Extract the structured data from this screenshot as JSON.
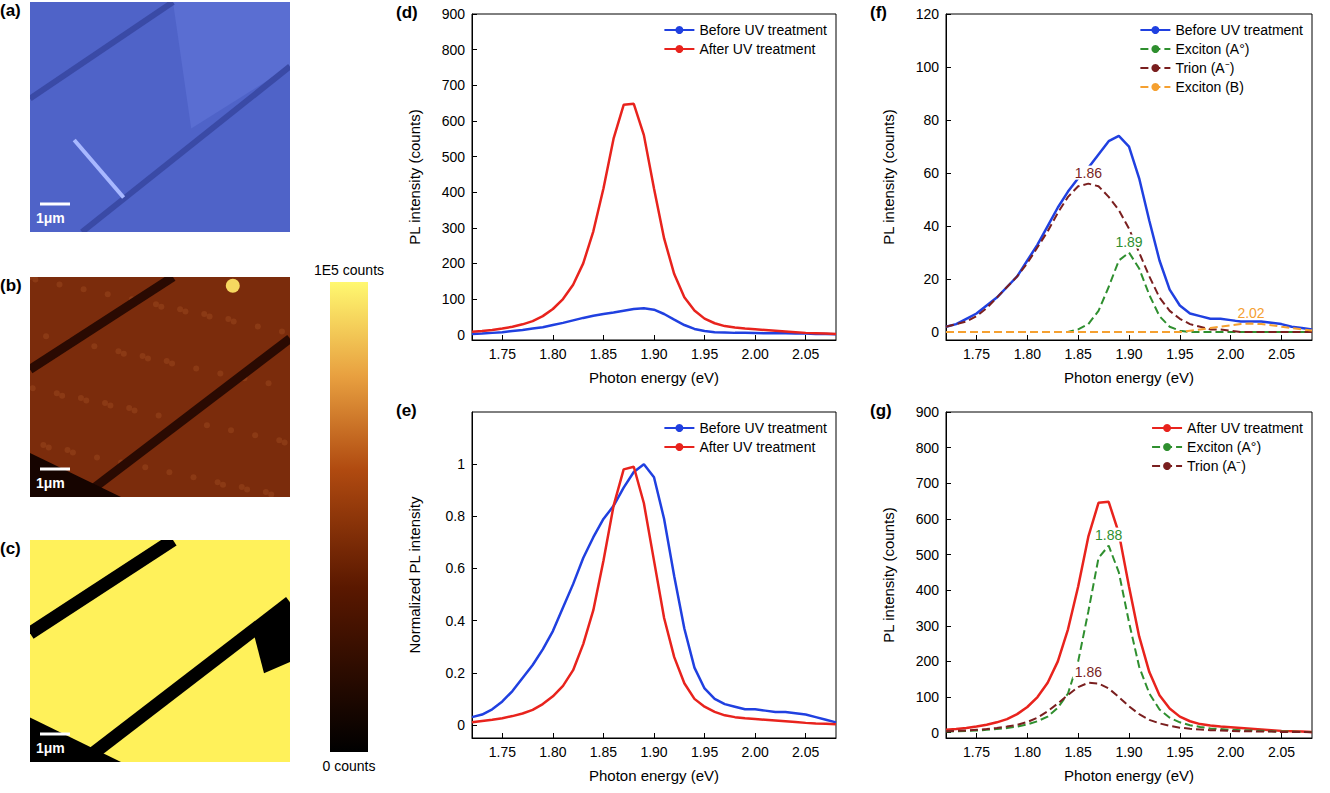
{
  "images": [
    {
      "panel": "(a)",
      "scale_bar": "1μm"
    },
    {
      "panel": "(b)",
      "scale_bar": "1μm"
    },
    {
      "panel": "(c)",
      "scale_bar": "1μm"
    }
  ],
  "colorbar": {
    "range": [
      0,
      100000
    ],
    "ticks": [
      {
        "value": 0,
        "label": "0 counts"
      },
      {
        "value": 100000,
        "label": "1E5 counts"
      }
    ]
  },
  "chart_data": [
    {
      "panel": "(d)",
      "type": "line",
      "xlabel": "Photon energy (eV)",
      "ylabel": "PL intensity (counts)",
      "xlim": [
        1.72,
        2.08
      ],
      "ylim": [
        -15,
        900
      ],
      "xticks": [
        1.75,
        {
          "value": 1.8,
          "label": "1.80"
        },
        1.85,
        {
          "value": 1.9,
          "label": "1.90"
        },
        1.95,
        {
          "value": 2,
          "label": "2.00"
        },
        2.05
      ],
      "yticks": [
        0,
        100,
        200,
        300,
        400,
        500,
        600,
        700,
        800,
        900
      ],
      "grid": false,
      "legend": "top-right",
      "x": [
        1.72,
        1.73,
        1.74,
        1.75,
        1.76,
        1.77,
        1.78,
        1.79,
        1.8,
        1.81,
        1.82,
        1.83,
        1.84,
        1.85,
        1.86,
        1.87,
        1.88,
        1.89,
        1.9,
        1.91,
        1.92,
        1.93,
        1.94,
        1.95,
        1.96,
        1.97,
        1.98,
        1.99,
        2,
        2.01,
        2.02,
        2.03,
        2.04,
        2.05,
        2.06,
        2.07,
        2.08
      ],
      "series": [
        {
          "name": "Before UV treatment",
          "color": "#2040e0",
          "values": [
            2,
            3,
            5,
            7,
            10,
            13,
            17,
            21,
            27,
            33,
            40,
            47,
            53,
            58,
            62,
            67,
            72,
            74,
            70,
            58,
            42,
            27,
            16,
            10,
            7,
            6,
            5,
            5,
            4.5,
            4,
            4,
            4,
            3.5,
            3,
            2,
            1.5,
            1
          ]
        },
        {
          "name": "After UV treatment",
          "color": "#e8231d",
          "values": [
            8,
            10,
            13,
            17,
            22,
            29,
            38,
            52,
            72,
            100,
            140,
            200,
            290,
            410,
            550,
            645,
            648,
            560,
            410,
            270,
            170,
            105,
            68,
            45,
            32,
            24,
            20,
            17,
            15,
            13,
            11,
            9,
            7,
            5,
            4,
            3,
            2
          ]
        }
      ]
    },
    {
      "panel": "(e)",
      "type": "line",
      "xlabel": "Photon energy (eV)",
      "ylabel": "Normalized PL intensity",
      "xlim": [
        1.72,
        2.08
      ],
      "ylim": [
        -0.05,
        1.2
      ],
      "xticks": [
        1.75,
        {
          "value": 1.8,
          "label": "1.80"
        },
        1.85,
        {
          "value": 1.9,
          "label": "1.90"
        },
        1.95,
        {
          "value": 2,
          "label": "2.00"
        },
        2.05
      ],
      "yticks": [
        0,
        0.2,
        0.4,
        0.6,
        0.8,
        1
      ],
      "grid": false,
      "legend": "top-right",
      "x": [
        1.72,
        1.73,
        1.74,
        1.75,
        1.76,
        1.77,
        1.78,
        1.79,
        1.8,
        1.81,
        1.82,
        1.83,
        1.84,
        1.85,
        1.86,
        1.87,
        1.88,
        1.89,
        1.9,
        1.91,
        1.92,
        1.93,
        1.94,
        1.95,
        1.96,
        1.97,
        1.98,
        1.99,
        2,
        2.01,
        2.02,
        2.03,
        2.04,
        2.05,
        2.06,
        2.07,
        2.08
      ],
      "series": [
        {
          "name": "Before UV treatment",
          "color": "#2040e0",
          "values": [
            0.03,
            0.04,
            0.06,
            0.09,
            0.13,
            0.18,
            0.23,
            0.29,
            0.36,
            0.45,
            0.54,
            0.64,
            0.72,
            0.79,
            0.84,
            0.91,
            0.97,
            1.0,
            0.95,
            0.79,
            0.57,
            0.37,
            0.22,
            0.14,
            0.1,
            0.08,
            0.07,
            0.06,
            0.06,
            0.055,
            0.05,
            0.05,
            0.045,
            0.04,
            0.03,
            0.02,
            0.01
          ]
        },
        {
          "name": "After UV treatment",
          "color": "#e8231d",
          "values": [
            0.01,
            0.015,
            0.02,
            0.026,
            0.034,
            0.044,
            0.058,
            0.08,
            0.11,
            0.15,
            0.21,
            0.31,
            0.44,
            0.63,
            0.84,
            0.98,
            0.99,
            0.85,
            0.63,
            0.41,
            0.26,
            0.16,
            0.1,
            0.07,
            0.05,
            0.037,
            0.03,
            0.026,
            0.023,
            0.02,
            0.017,
            0.014,
            0.011,
            0.008,
            0.006,
            0.005,
            0.003
          ]
        }
      ]
    },
    {
      "panel": "(f)",
      "type": "line",
      "xlabel": "Photon energy (eV)",
      "ylabel": "PL intensity (counts)",
      "xlim": [
        1.72,
        2.08
      ],
      "ylim": [
        -3,
        120
      ],
      "xticks": [
        1.75,
        {
          "value": 1.8,
          "label": "1.80"
        },
        1.85,
        {
          "value": 1.9,
          "label": "1.90"
        },
        1.95,
        {
          "value": 2,
          "label": "2.00"
        },
        2.05
      ],
      "yticks": [
        0,
        20,
        40,
        60,
        80,
        100,
        120
      ],
      "grid": false,
      "legend": "top-right",
      "x": [
        1.72,
        1.73,
        1.74,
        1.75,
        1.76,
        1.77,
        1.78,
        1.79,
        1.8,
        1.81,
        1.82,
        1.83,
        1.84,
        1.85,
        1.86,
        1.87,
        1.88,
        1.89,
        1.9,
        1.91,
        1.92,
        1.93,
        1.94,
        1.95,
        1.96,
        1.97,
        1.98,
        1.99,
        2,
        2.01,
        2.02,
        2.03,
        2.04,
        2.05,
        2.06,
        2.07,
        2.08
      ],
      "series": [
        {
          "name": "Before UV treatment",
          "color": "#2040e0",
          "values": [
            2,
            3,
            5,
            7,
            10,
            13,
            17,
            21,
            27,
            33,
            40,
            47,
            53,
            58,
            62,
            67,
            72,
            74,
            70,
            58,
            42,
            27,
            16,
            10,
            7,
            6,
            5,
            5,
            4.5,
            4,
            4,
            4,
            3.5,
            3,
            2,
            1.5,
            1
          ]
        },
        {
          "name": "Exciton (A°)",
          "color": "#2f8f2f",
          "line_style": "dashed",
          "annotation": "1.89",
          "values": [
            0,
            0,
            0,
            0,
            0,
            0,
            0,
            0,
            0,
            0,
            0,
            0,
            0,
            1,
            3,
            8,
            17,
            27,
            30,
            24,
            14,
            6,
            2,
            0.5,
            0,
            0,
            0,
            0,
            0,
            0,
            0,
            0,
            0,
            0,
            0,
            0,
            0
          ]
        },
        {
          "name": "Trion (A⁻)",
          "color": "#7a1f1f",
          "line_style": "dashed",
          "annotation": "1.86",
          "values": [
            2,
            3,
            4,
            6,
            9,
            13,
            17,
            21,
            26,
            32,
            38,
            45,
            51,
            55,
            56,
            55,
            51,
            46,
            39,
            30,
            21,
            13,
            8,
            5,
            3,
            2,
            1,
            1,
            0.5,
            0,
            0,
            0,
            0,
            0,
            0,
            0,
            0
          ]
        },
        {
          "name": "Exciton (B)",
          "color": "#f5a030",
          "line_style": "dashed",
          "annotation": "2.02",
          "values": [
            0,
            0,
            0,
            0,
            0,
            0,
            0,
            0,
            0,
            0,
            0,
            0,
            0,
            0,
            0,
            0,
            0,
            0,
            0,
            0,
            0,
            0,
            0,
            0,
            0.5,
            1,
            1.5,
            2,
            2.5,
            3,
            3.2,
            3,
            2.6,
            2,
            1.5,
            1,
            0.6
          ]
        }
      ]
    },
    {
      "panel": "(g)",
      "type": "line",
      "xlabel": "Photon energy (eV)",
      "ylabel": "PL intensity (counts)",
      "xlim": [
        1.72,
        2.08
      ],
      "ylim": [
        -15,
        900
      ],
      "xticks": [
        1.75,
        {
          "value": 1.8,
          "label": "1.80"
        },
        1.85,
        {
          "value": 1.9,
          "label": "1.90"
        },
        1.95,
        {
          "value": 2,
          "label": "2.00"
        },
        2.05
      ],
      "yticks": [
        0,
        100,
        200,
        300,
        400,
        500,
        600,
        700,
        800,
        900
      ],
      "grid": false,
      "legend": "top-right",
      "x": [
        1.72,
        1.73,
        1.74,
        1.75,
        1.76,
        1.77,
        1.78,
        1.79,
        1.8,
        1.81,
        1.82,
        1.83,
        1.84,
        1.85,
        1.86,
        1.87,
        1.88,
        1.89,
        1.9,
        1.91,
        1.92,
        1.93,
        1.94,
        1.95,
        1.96,
        1.97,
        1.98,
        1.99,
        2,
        2.01,
        2.02,
        2.03,
        2.04,
        2.05,
        2.06,
        2.07,
        2.08
      ],
      "series": [
        {
          "name": "After UV treatment",
          "color": "#e8231d",
          "values": [
            8,
            10,
            13,
            17,
            22,
            29,
            38,
            52,
            72,
            100,
            140,
            200,
            290,
            410,
            550,
            645,
            648,
            560,
            410,
            270,
            170,
            105,
            68,
            45,
            32,
            24,
            20,
            17,
            15,
            13,
            11,
            9,
            7,
            5,
            4,
            3,
            2
          ]
        },
        {
          "name": "Exciton (A°)",
          "color": "#2f8f2f",
          "line_style": "dashed",
          "annotation": "1.88",
          "values": [
            3,
            4,
            5,
            6,
            8,
            10,
            13,
            17,
            23,
            32,
            45,
            70,
            110,
            200,
            340,
            490,
            525,
            450,
            310,
            185,
            110,
            65,
            42,
            29,
            21,
            16,
            12,
            10,
            8,
            7,
            6,
            5,
            4,
            3,
            3,
            2,
            2
          ]
        },
        {
          "name": "Trion (A⁻)",
          "color": "#7a1f1f",
          "line_style": "dashed",
          "annotation": "1.86",
          "values": [
            4,
            5,
            6,
            8,
            10,
            13,
            17,
            22,
            30,
            42,
            60,
            82,
            106,
            128,
            140,
            138,
            124,
            100,
            74,
            52,
            36,
            26,
            19,
            14,
            11,
            9,
            7,
            6,
            5,
            4,
            4,
            3,
            3,
            2,
            2,
            2,
            1
          ]
        }
      ]
    }
  ]
}
